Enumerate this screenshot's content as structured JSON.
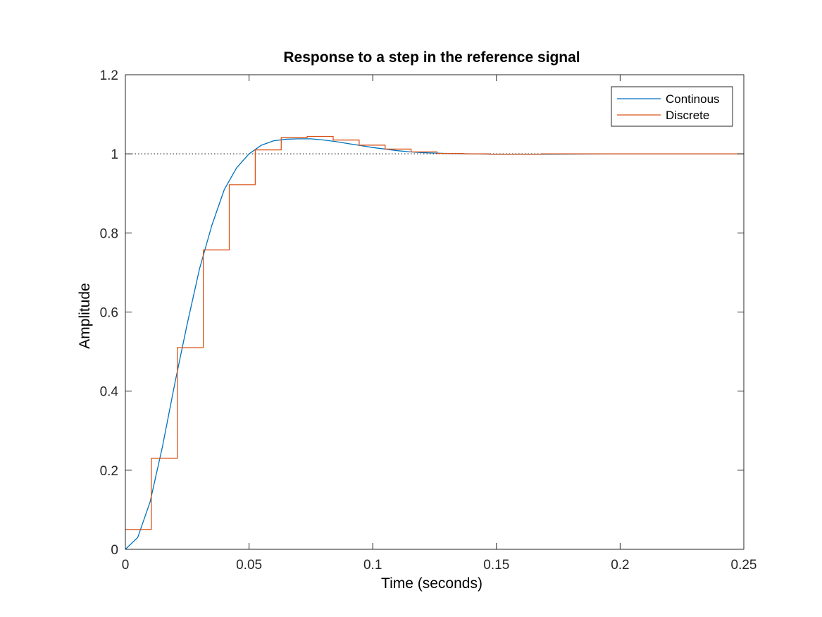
{
  "chart_data": {
    "type": "line",
    "title": "Response to a step in the reference signal",
    "xlabel": "Time (seconds)",
    "ylabel": "Amplitude",
    "xlim": [
      0,
      0.25
    ],
    "ylim": [
      0,
      1.2
    ],
    "xticks": [
      0,
      0.05,
      0.1,
      0.15,
      0.2,
      0.25
    ],
    "xtick_labels": [
      "0",
      "0.05",
      "0.1",
      "0.15",
      "0.2",
      "0.25"
    ],
    "yticks": [
      0,
      0.2,
      0.4,
      0.6,
      0.8,
      1,
      1.2
    ],
    "ytick_labels": [
      "0",
      "0.2",
      "0.4",
      "0.6",
      "0.8",
      "1",
      "1.2"
    ],
    "grid": false,
    "legend_position": "top-right",
    "reference_line": {
      "y": 1,
      "style": "dotted",
      "color": "#000000"
    },
    "series": [
      {
        "name": "Continous",
        "style": "line",
        "color": "#0072BD",
        "x": [
          0,
          0.005,
          0.01,
          0.015,
          0.02,
          0.025,
          0.03,
          0.035,
          0.04,
          0.045,
          0.05,
          0.055,
          0.06,
          0.065,
          0.07,
          0.075,
          0.08,
          0.085,
          0.09,
          0.095,
          0.1,
          0.105,
          0.11,
          0.115,
          0.12,
          0.13,
          0.14,
          0.15,
          0.17,
          0.2,
          0.25
        ],
        "y": [
          0,
          0.03,
          0.12,
          0.26,
          0.42,
          0.57,
          0.71,
          0.82,
          0.91,
          0.965,
          1.0,
          1.022,
          1.033,
          1.037,
          1.038,
          1.038,
          1.035,
          1.031,
          1.026,
          1.021,
          1.016,
          1.012,
          1.008,
          1.005,
          1.003,
          1.001,
          1.0,
          0.999,
          0.999,
          1.0,
          1.0
        ]
      },
      {
        "name": "Discrete",
        "style": "stairs",
        "color": "#D95319",
        "x": [
          0,
          0.0105,
          0.021,
          0.0315,
          0.042,
          0.0525,
          0.063,
          0.0735,
          0.084,
          0.0945,
          0.105,
          0.1155,
          0.126,
          0.1365,
          0.147,
          0.1575,
          0.168,
          0.25
        ],
        "y": [
          0.05,
          0.23,
          0.51,
          0.757,
          0.922,
          1.01,
          1.041,
          1.044,
          1.035,
          1.022,
          1.012,
          1.005,
          1.001,
          1.0,
          0.999,
          0.999,
          1.0,
          1.0
        ]
      }
    ]
  }
}
